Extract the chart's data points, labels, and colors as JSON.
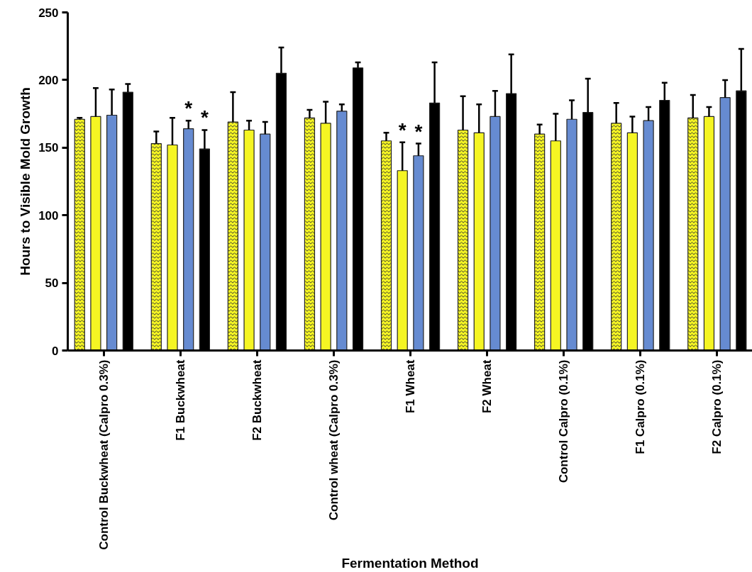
{
  "chart_data": {
    "type": "bar",
    "xlabel": "Fermentation Method",
    "ylabel": "Hours to Visible Mold Growth",
    "categories": [
      "Control Buckwheat (Calpro 0.3%)",
      "F1 Buckwheat",
      "F2 Buckwheat",
      "Control wheat (Calpro 0.3%)",
      "F1 Wheat",
      "F2 Wheat",
      "Control Calpro (0.1%)",
      "F1 Calpro (0.1%)",
      "F2 Calpro (0.1%)"
    ],
    "series": [
      {
        "color": "#f5f523",
        "values": [
          171,
          153,
          169,
          172,
          155,
          163,
          160,
          168,
          172
        ],
        "errors": [
          [
            171,
            172
          ],
          [
            153,
            162
          ],
          [
            169,
            191
          ],
          [
            172,
            178
          ],
          [
            155,
            161
          ],
          [
            163,
            188
          ],
          [
            160,
            167
          ],
          [
            168,
            183
          ],
          [
            172,
            189
          ]
        ]
      },
      {
        "color": "#f5f523",
        "values": [
          173,
          152,
          163,
          168,
          133,
          161,
          155,
          161,
          173
        ],
        "value_labels": [
          null,
          null,
          null,
          null,
          "*",
          null,
          null,
          null,
          null
        ],
        "errors": [
          [
            173,
            194
          ],
          [
            152,
            172
          ],
          [
            163,
            170
          ],
          [
            168,
            184
          ],
          [
            133,
            154
          ],
          [
            161,
            182
          ],
          [
            155,
            175
          ],
          [
            161,
            173
          ],
          [
            173,
            180
          ]
        ]
      },
      {
        "color": "#668bd1",
        "values": [
          174,
          164,
          160,
          177,
          144,
          173,
          171,
          170,
          187
        ],
        "value_labels": [
          null,
          "*",
          null,
          null,
          "*",
          null,
          null,
          null,
          null
        ],
        "errors": [
          [
            174,
            193
          ],
          [
            164,
            170
          ],
          [
            160,
            169
          ],
          [
            177,
            182
          ],
          [
            144,
            153
          ],
          [
            173,
            192
          ],
          [
            171,
            185
          ],
          [
            170,
            180
          ],
          [
            187,
            200
          ]
        ]
      },
      {
        "color": "#000000",
        "values": [
          191,
          149,
          205,
          209,
          183,
          190,
          176,
          185,
          192
        ],
        "value_labels": [
          null,
          "*",
          null,
          null,
          null,
          null,
          null,
          null,
          null
        ],
        "errors": [
          [
            191,
            197
          ],
          [
            149,
            163
          ],
          [
            205,
            224
          ],
          [
            209,
            213
          ],
          [
            183,
            213
          ],
          [
            190,
            219
          ],
          [
            176,
            201
          ],
          [
            185,
            198
          ],
          [
            192,
            223
          ]
        ]
      }
    ],
    "ylim": [
      0,
      250
    ],
    "yticks": [
      0,
      50,
      100,
      150,
      200,
      250
    ],
    "grid": false
  }
}
